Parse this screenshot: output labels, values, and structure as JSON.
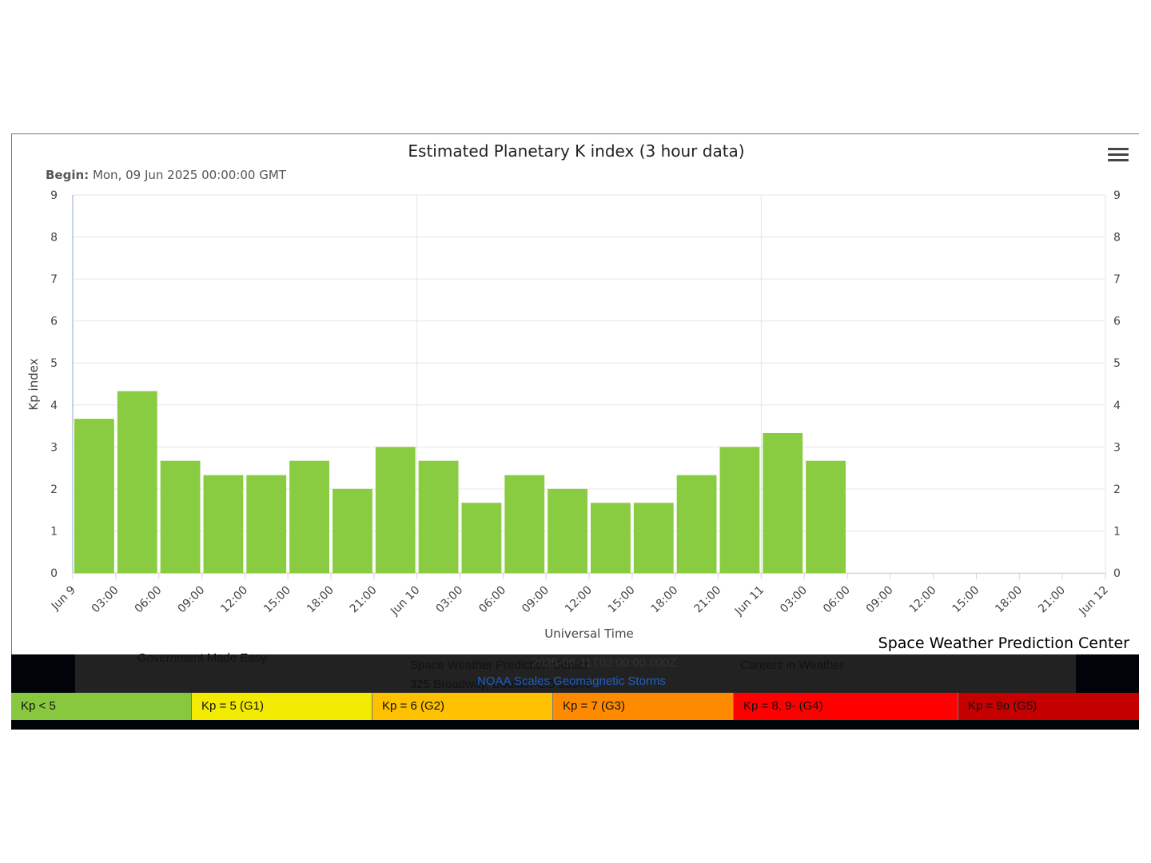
{
  "chart_data": {
    "type": "bar",
    "title": "Estimated Planetary K index (3 hour data)",
    "subtitle_label": "Begin:",
    "subtitle_value": "Mon, 09 Jun 2025 00:00:00 GMT",
    "ylabel": "Kp index",
    "xlabel": "Universal Time",
    "ylim": [
      0,
      9
    ],
    "yticks": [
      "0",
      "1",
      "2",
      "3",
      "4",
      "5",
      "6",
      "7",
      "8",
      "9"
    ],
    "xticks": [
      "Jun 9",
      "03:00",
      "06:00",
      "09:00",
      "12:00",
      "15:00",
      "18:00",
      "21:00",
      "Jun 10",
      "03:00",
      "06:00",
      "09:00",
      "12:00",
      "15:00",
      "18:00",
      "21:00",
      "Jun 11",
      "03:00",
      "06:00",
      "09:00",
      "12:00",
      "15:00",
      "18:00",
      "21:00",
      "Jun 12"
    ],
    "series": [
      {
        "values": [
          3.67,
          4.33,
          2.67,
          2.33,
          2.33,
          2.67,
          2.0,
          3.0,
          2.67,
          1.67,
          2.33,
          2.0,
          1.67,
          1.67,
          2.33,
          3.0,
          3.33,
          2.67
        ]
      }
    ],
    "bar_color": "#8acc41",
    "grid": true
  },
  "credit": "Space Weather Prediction Center",
  "menu_icon": "hamburger-menu-icon",
  "footer": {
    "left_text": "Government    Made Easy",
    "center_line1": "Space Weather Prediction Center",
    "center_line2": "325 Broadway, Boulder CO 80305",
    "center_overlay": "2025-06-11T03:00:00.000Z",
    "right_text": "Careers in Weather",
    "scale_link": "NOAA Scales Geomagnetic Storms"
  },
  "legend": [
    {
      "label": "Kp < 5",
      "color": "#87c83f"
    },
    {
      "label": "Kp = 5 (G1)",
      "color": "#f2ea00"
    },
    {
      "label": "Kp = 6 (G2)",
      "color": "#fdc100"
    },
    {
      "label": "Kp = 7 (G3)",
      "color": "#fe8a00"
    },
    {
      "label": "Kp = 8, 9- (G4)",
      "color": "#fe0000"
    },
    {
      "label": "Kp = 9o (G5)",
      "color": "#c40000"
    }
  ]
}
